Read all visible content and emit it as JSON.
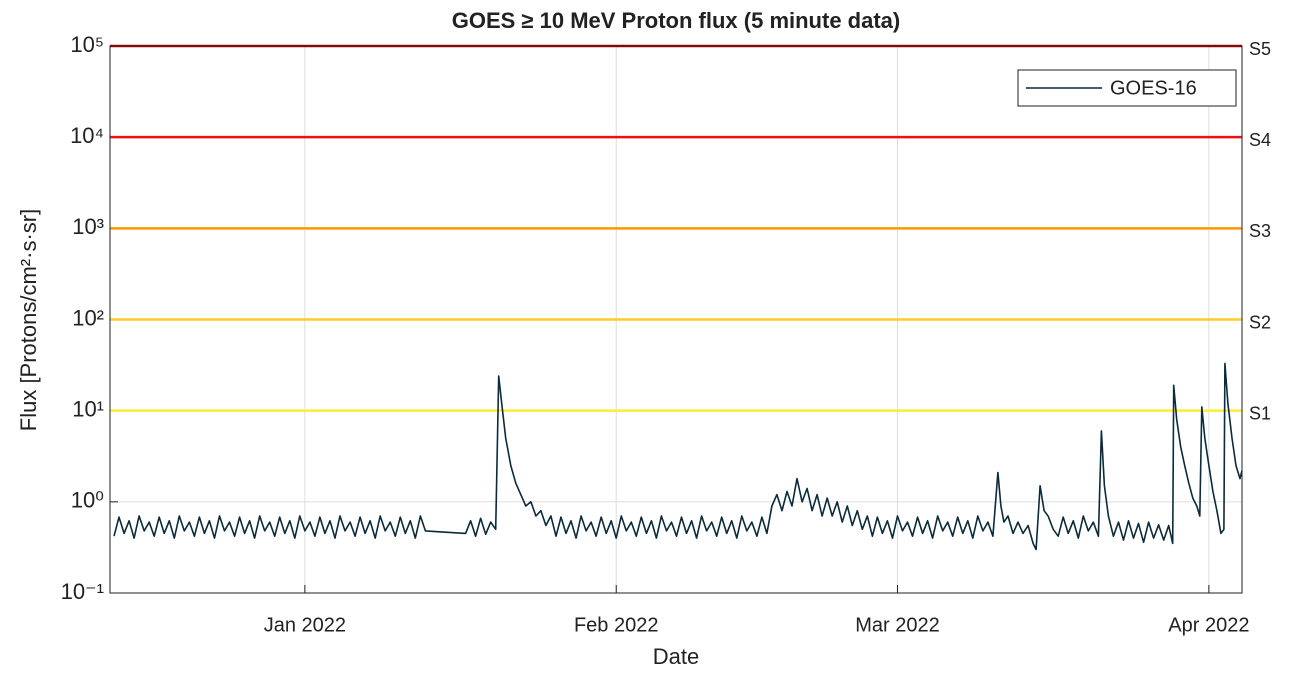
{
  "chart_data": {
    "type": "line",
    "title": "GOES ≥ 10 MeV Proton flux (5 minute data)",
    "x_label": "Date",
    "y_label": "Flux [Protons/cm²·s·sr]",
    "log_y": true,
    "grid": true,
    "legend": "upper right",
    "xlim": [
      -19.4,
      93.3
    ],
    "xticks": [
      {
        "value": 0,
        "label": "Jan 2022"
      },
      {
        "value": 31,
        "label": "Feb 2022"
      },
      {
        "value": 59,
        "label": "Mar 2022"
      },
      {
        "value": 90,
        "label": "Apr 2022"
      }
    ],
    "ylim": [
      0.1,
      100000
    ],
    "yticks": [
      {
        "value": 0.1,
        "label": "10⁻¹"
      },
      {
        "value": 1,
        "label": "10⁰"
      },
      {
        "value": 10,
        "label": "10¹"
      },
      {
        "value": 100,
        "label": "10²"
      },
      {
        "value": 1000,
        "label": "10³"
      },
      {
        "value": 10000,
        "label": "10⁴"
      },
      {
        "value": 100000,
        "label": "10⁵"
      }
    ],
    "thresholds": [
      {
        "label": "S1",
        "value": 10,
        "color": "#ffee33"
      },
      {
        "label": "S2",
        "value": 100,
        "color": "#ffcc22"
      },
      {
        "label": "S3",
        "value": 1000,
        "color": "#ff9900"
      },
      {
        "label": "S4",
        "value": 10000,
        "color": "#ee1111"
      },
      {
        "label": "S5",
        "value": 100000,
        "color": "#cc0000"
      }
    ],
    "series": [
      {
        "name": "GOES-16",
        "color": "#0b2a3a",
        "x": [
          -19,
          -18.5,
          -18,
          -17.5,
          -17,
          -16.5,
          -16,
          -15.5,
          -15,
          -14.5,
          -14,
          -13.5,
          -13,
          -12.5,
          -12,
          -11.5,
          -11,
          -10.5,
          -10,
          -9.5,
          -9,
          -8.5,
          -8,
          -7.5,
          -7,
          -6.5,
          -6,
          -5.5,
          -5,
          -4.5,
          -4,
          -3.5,
          -3,
          -2.5,
          -2,
          -1.5,
          -1,
          -0.5,
          0,
          0.5,
          1,
          1.5,
          2,
          2.5,
          3,
          3.5,
          4,
          4.5,
          5,
          5.5,
          6,
          6.5,
          7,
          7.5,
          8,
          8.5,
          9,
          9.5,
          10,
          10.5,
          11,
          11.5,
          12,
          16,
          16.5,
          17,
          17.5,
          18,
          18.5,
          19,
          19.3,
          19.6,
          20,
          20.5,
          21,
          21.5,
          22,
          22.5,
          23,
          23.5,
          24,
          24.5,
          25,
          25.5,
          26,
          26.5,
          27,
          27.5,
          28,
          28.5,
          29,
          29.5,
          30,
          30.5,
          31,
          31.5,
          32,
          32.5,
          33,
          33.5,
          34,
          34.5,
          35,
          35.5,
          36,
          36.5,
          37,
          37.5,
          38,
          38.5,
          39,
          39.5,
          40,
          40.5,
          41,
          41.5,
          42,
          42.5,
          43,
          43.5,
          44,
          44.5,
          45,
          45.5,
          46,
          46.5,
          47,
          47.5,
          48,
          48.5,
          49,
          49.5,
          50,
          50.5,
          51,
          51.5,
          52,
          52.5,
          53,
          53.5,
          54,
          54.5,
          55,
          55.5,
          56,
          56.5,
          57,
          57.5,
          58,
          58.5,
          59,
          59.5,
          60,
          60.5,
          61,
          61.5,
          62,
          62.5,
          63,
          63.5,
          64,
          64.5,
          65,
          65.5,
          66,
          66.5,
          67,
          67.5,
          68,
          68.5,
          69,
          69.3,
          69.6,
          70,
          70.5,
          71,
          71.5,
          72,
          72.5,
          72.8,
          73.2,
          73.6,
          74,
          74.5,
          75,
          75.5,
          76,
          76.5,
          77,
          77.5,
          78,
          78.5,
          79,
          79.3,
          79.6,
          80,
          80.5,
          81,
          81.5,
          82,
          82.5,
          83,
          83.5,
          84,
          84.5,
          85,
          85.5,
          86,
          86.4,
          86.5,
          86.8,
          87.2,
          87.6,
          88,
          88.4,
          88.8,
          89.1,
          89.3,
          89.6,
          90,
          90.4,
          90.8,
          91.2,
          91.5,
          91.6,
          91.9,
          92.3,
          92.7,
          93.1,
          93.3
        ],
        "values": [
          0.42,
          0.68,
          0.45,
          0.62,
          0.4,
          0.7,
          0.48,
          0.6,
          0.42,
          0.68,
          0.45,
          0.62,
          0.4,
          0.7,
          0.48,
          0.6,
          0.42,
          0.68,
          0.45,
          0.62,
          0.4,
          0.7,
          0.48,
          0.6,
          0.42,
          0.68,
          0.45,
          0.62,
          0.4,
          0.7,
          0.48,
          0.6,
          0.42,
          0.68,
          0.45,
          0.62,
          0.4,
          0.7,
          0.48,
          0.6,
          0.42,
          0.68,
          0.45,
          0.62,
          0.4,
          0.7,
          0.48,
          0.6,
          0.42,
          0.68,
          0.45,
          0.62,
          0.4,
          0.7,
          0.48,
          0.6,
          0.42,
          0.68,
          0.45,
          0.62,
          0.4,
          0.7,
          0.48,
          0.45,
          0.62,
          0.42,
          0.66,
          0.44,
          0.6,
          0.5,
          24,
          12,
          5,
          2.5,
          1.6,
          1.2,
          0.9,
          1.0,
          0.7,
          0.8,
          0.55,
          0.7,
          0.42,
          0.68,
          0.45,
          0.62,
          0.4,
          0.7,
          0.48,
          0.6,
          0.42,
          0.68,
          0.45,
          0.62,
          0.4,
          0.7,
          0.48,
          0.6,
          0.42,
          0.68,
          0.45,
          0.62,
          0.4,
          0.7,
          0.48,
          0.6,
          0.42,
          0.68,
          0.45,
          0.62,
          0.4,
          0.7,
          0.48,
          0.6,
          0.42,
          0.68,
          0.45,
          0.62,
          0.4,
          0.7,
          0.48,
          0.6,
          0.42,
          0.68,
          0.45,
          0.9,
          1.2,
          0.8,
          1.3,
          0.9,
          1.8,
          1.0,
          1.4,
          0.8,
          1.2,
          0.7,
          1.1,
          0.7,
          1.0,
          0.6,
          0.9,
          0.55,
          0.8,
          0.5,
          0.7,
          0.42,
          0.68,
          0.45,
          0.62,
          0.4,
          0.7,
          0.48,
          0.6,
          0.42,
          0.68,
          0.45,
          0.62,
          0.4,
          0.7,
          0.48,
          0.6,
          0.42,
          0.68,
          0.45,
          0.62,
          0.4,
          0.7,
          0.48,
          0.6,
          0.42,
          2.1,
          0.9,
          0.6,
          0.7,
          0.45,
          0.6,
          0.45,
          0.55,
          0.35,
          0.3,
          1.5,
          0.8,
          0.7,
          0.5,
          0.42,
          0.68,
          0.45,
          0.62,
          0.4,
          0.7,
          0.48,
          0.6,
          0.42,
          6,
          1.5,
          0.7,
          0.42,
          0.6,
          0.38,
          0.62,
          0.4,
          0.58,
          0.36,
          0.6,
          0.4,
          0.56,
          0.38,
          0.55,
          0.35,
          19,
          8,
          4,
          2.5,
          1.6,
          1.1,
          0.9,
          0.7,
          11,
          5,
          2.5,
          1.3,
          0.8,
          0.45,
          0.5,
          33,
          12,
          5,
          2.5,
          1.8,
          2.2
        ]
      }
    ]
  }
}
